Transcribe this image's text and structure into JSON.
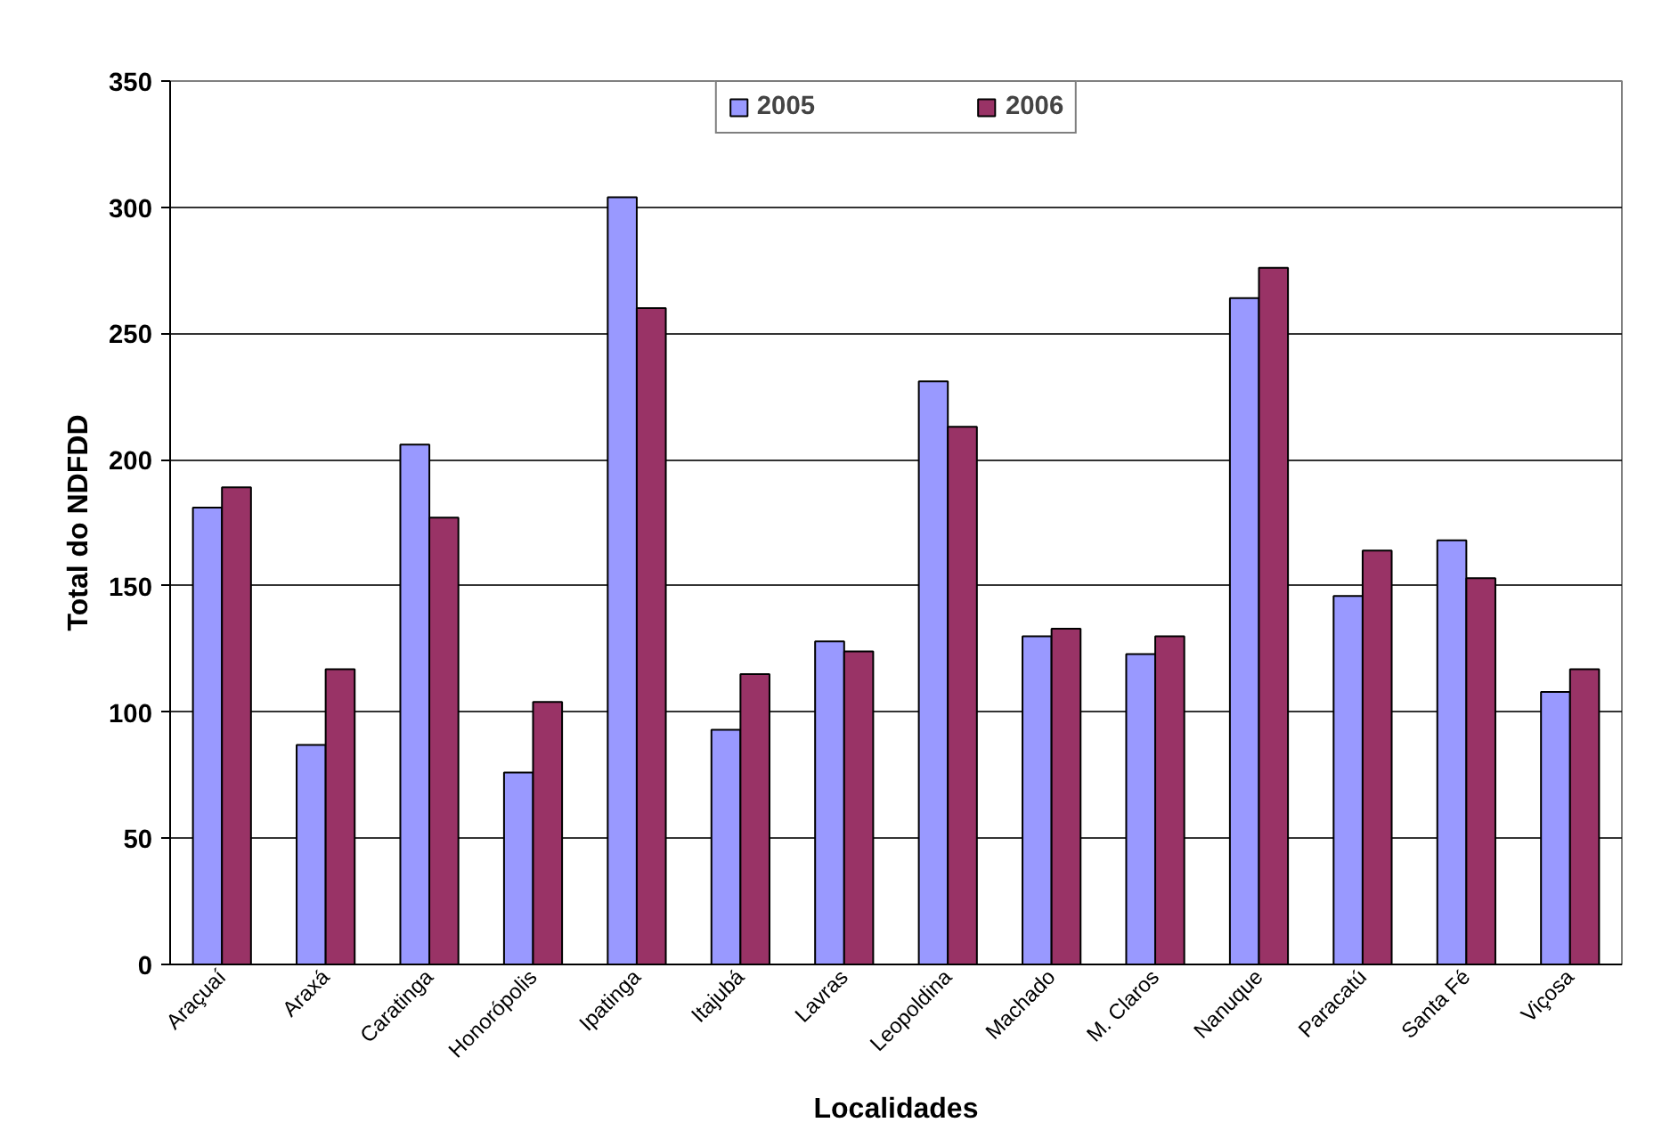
{
  "chart_data": {
    "type": "bar",
    "xlabel": "Localidades",
    "ylabel": "Total do NDFDD",
    "categories": [
      "Araçuaí",
      "Araxá",
      "Caratinga",
      "Honorópolis",
      "Ipatinga",
      "Itajubá",
      "Lavras",
      "Leopoldina",
      "Machado",
      "M. Claros",
      "Nanuque",
      "Paracatú",
      "Santa Fé",
      "Viçosa"
    ],
    "series": [
      {
        "name": "2005",
        "color": "#9999ff",
        "values": [
          181,
          87,
          206,
          76,
          304,
          93,
          128,
          231,
          130,
          123,
          264,
          146,
          168,
          108
        ]
      },
      {
        "name": "2006",
        "color": "#993366",
        "values": [
          189,
          117,
          177,
          104,
          260,
          115,
          124,
          213,
          133,
          130,
          276,
          164,
          153,
          117
        ]
      }
    ],
    "ylim": [
      0,
      350
    ],
    "yticks": [
      0,
      50,
      100,
      150,
      200,
      250,
      300,
      350
    ],
    "grid": "y",
    "legend": "top"
  }
}
